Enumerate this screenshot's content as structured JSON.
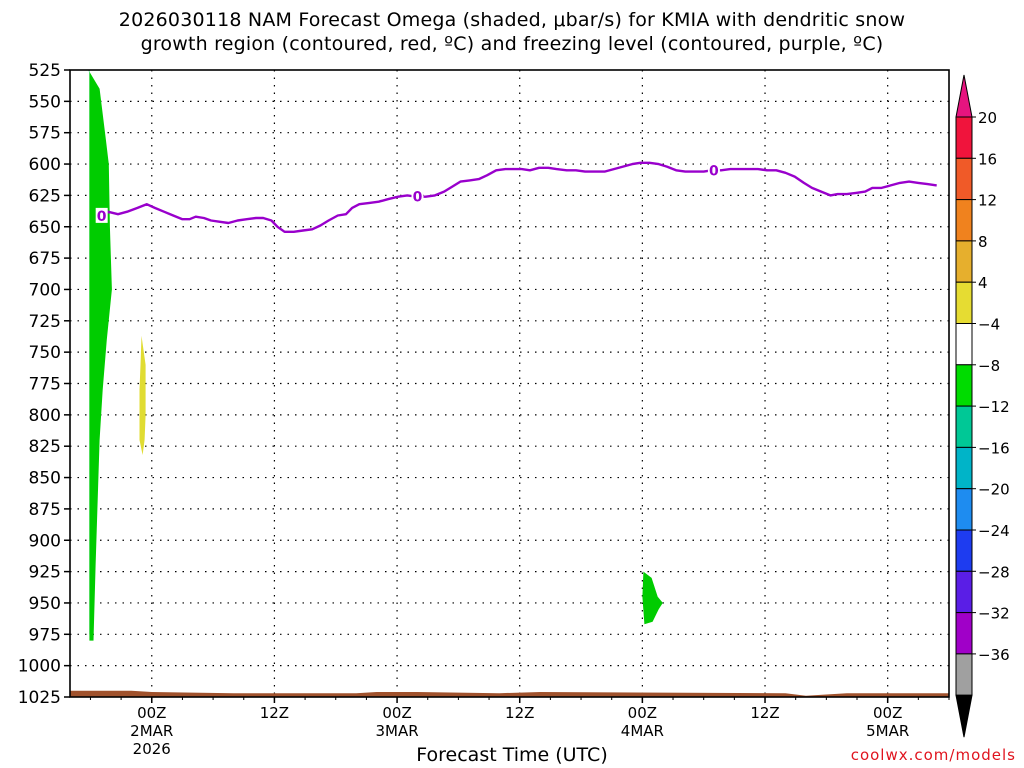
{
  "title_line1": "2026030118 NAM Forecast Omega (shaded, μbar/s) for KMIA with dendritic snow",
  "title_line2": "growth region (contoured, red, ºC) and freezing level (contoured, purple, ºC)",
  "xlabel": "Forecast Time (UTC)",
  "credit": "coolwx.com/models",
  "chart_data": {
    "type": "contour-timeheight",
    "x_unit": "forecast hours from 2026030118",
    "x_range": [
      -2,
      84
    ],
    "y_range_mb": [
      525,
      1025
    ],
    "y_ticks": [
      "525",
      "550",
      "575",
      "600",
      "625",
      "650",
      "675",
      "700",
      "725",
      "750",
      "775",
      "800",
      "825",
      "850",
      "875",
      "900",
      "925",
      "950",
      "975",
      "1000",
      "1025"
    ],
    "x_ticks": [
      {
        "hour": 6,
        "label": [
          "00Z",
          "2MAR",
          "2026"
        ]
      },
      {
        "hour": 18,
        "label": [
          "12Z"
        ]
      },
      {
        "hour": 30,
        "label": [
          "00Z",
          "3MAR"
        ]
      },
      {
        "hour": 42,
        "label": [
          "12Z"
        ]
      },
      {
        "hour": 54,
        "label": [
          "00Z",
          "4MAR"
        ]
      },
      {
        "hour": 66,
        "label": [
          "12Z"
        ]
      },
      {
        "hour": 78,
        "label": [
          "00Z",
          "5MAR"
        ]
      }
    ],
    "freezing_level": {
      "label": "0",
      "color": "#9900cc",
      "points": [
        [
          0.8,
          643
        ],
        [
          1.7,
          638
        ],
        [
          2.7,
          640
        ],
        [
          3.6,
          638
        ],
        [
          4.6,
          635
        ],
        [
          5.5,
          632
        ],
        [
          6.3,
          635
        ],
        [
          7.2,
          638
        ],
        [
          8.1,
          641
        ],
        [
          9.0,
          644
        ],
        [
          9.7,
          644
        ],
        [
          10.3,
          642
        ],
        [
          11.1,
          643
        ],
        [
          11.8,
          645
        ],
        [
          12.6,
          646
        ],
        [
          13.5,
          647
        ],
        [
          14.4,
          645
        ],
        [
          15.3,
          644
        ],
        [
          16.2,
          643
        ],
        [
          16.9,
          643
        ],
        [
          17.7,
          645
        ],
        [
          18.3,
          650
        ],
        [
          19.0,
          654
        ],
        [
          19.9,
          654
        ],
        [
          20.8,
          653
        ],
        [
          21.7,
          652
        ],
        [
          22.5,
          649
        ],
        [
          23.3,
          645
        ],
        [
          24.2,
          641
        ],
        [
          25.0,
          640
        ],
        [
          25.6,
          635
        ],
        [
          26.3,
          632
        ],
        [
          27.3,
          631
        ],
        [
          28.2,
          630
        ],
        [
          29.1,
          628
        ],
        [
          30.1,
          626
        ],
        [
          31.0,
          625
        ],
        [
          31.9,
          626
        ],
        [
          32.8,
          626
        ],
        [
          33.7,
          625
        ],
        [
          34.6,
          622
        ],
        [
          35.4,
          618
        ],
        [
          36.2,
          614
        ],
        [
          37.1,
          613
        ],
        [
          38.0,
          612
        ],
        [
          38.8,
          609
        ],
        [
          39.7,
          605
        ],
        [
          40.6,
          604
        ],
        [
          41.5,
          604
        ],
        [
          42.2,
          604
        ],
        [
          43.0,
          605
        ],
        [
          43.9,
          603
        ],
        [
          44.8,
          603
        ],
        [
          45.6,
          604
        ],
        [
          46.6,
          605
        ],
        [
          47.5,
          605
        ],
        [
          48.4,
          606
        ],
        [
          49.3,
          606
        ],
        [
          50.3,
          606
        ],
        [
          51.2,
          604
        ],
        [
          52.1,
          602
        ],
        [
          53.0,
          600
        ],
        [
          53.8,
          599
        ],
        [
          54.7,
          599
        ],
        [
          55.6,
          600
        ],
        [
          56.4,
          602
        ],
        [
          57.3,
          605
        ],
        [
          58.2,
          606
        ],
        [
          59.2,
          606
        ],
        [
          60.0,
          606
        ],
        [
          60.8,
          605
        ],
        [
          61.7,
          605
        ],
        [
          62.6,
          604
        ],
        [
          63.5,
          604
        ],
        [
          64.4,
          604
        ],
        [
          65.3,
          604
        ],
        [
          66.2,
          605
        ],
        [
          67.1,
          605
        ],
        [
          68.0,
          607
        ],
        [
          68.9,
          610
        ],
        [
          69.8,
          615
        ],
        [
          70.6,
          619
        ],
        [
          71.5,
          622
        ],
        [
          72.4,
          625
        ],
        [
          73.1,
          624
        ],
        [
          74.0,
          624
        ],
        [
          74.9,
          623
        ],
        [
          75.8,
          622
        ],
        [
          76.5,
          619
        ],
        [
          77.4,
          619
        ],
        [
          78.3,
          617
        ],
        [
          79.2,
          615
        ],
        [
          80.1,
          614
        ],
        [
          81.0,
          615
        ],
        [
          81.9,
          616
        ],
        [
          82.8,
          617
        ]
      ],
      "label_hours": [
        1.1,
        32.0,
        61.0
      ]
    },
    "omega_shaded": [
      {
        "color": "#00cc88",
        "bin": "-12 to -8",
        "outline_mb": [
          [
            -0.2,
            525
          ],
          [
            0.4,
            540
          ],
          [
            0.8,
            580
          ],
          [
            1.0,
            600
          ],
          [
            1.2,
            640
          ],
          [
            1.4,
            680
          ],
          [
            1.3,
            720
          ],
          [
            1.1,
            760
          ],
          [
            0.9,
            800
          ],
          [
            0.7,
            850
          ],
          [
            0.5,
            900
          ],
          [
            0.3,
            940
          ],
          [
            0.1,
            975
          ],
          [
            -0.1,
            975
          ],
          [
            -0.1,
            525
          ]
        ]
      },
      {
        "color": "#00cc00",
        "bin": "-8 to -4",
        "outline_mb": [
          [
            -0.2,
            525
          ],
          [
            0.9,
            540
          ],
          [
            1.5,
            580
          ],
          [
            1.8,
            600
          ],
          [
            1.9,
            650
          ],
          [
            2.1,
            700
          ],
          [
            1.6,
            740
          ],
          [
            1.2,
            780
          ],
          [
            0.9,
            820
          ],
          [
            0.7,
            870
          ],
          [
            0.5,
            920
          ],
          [
            0.3,
            980
          ],
          [
            -0.1,
            980
          ],
          [
            -0.1,
            525
          ]
        ]
      },
      {
        "color": "#00cc00",
        "bin": "-8 to -4",
        "outline_mb": [
          [
            54.1,
            925
          ],
          [
            54.9,
            930
          ],
          [
            55.5,
            945
          ],
          [
            56.0,
            950
          ],
          [
            55.6,
            955
          ],
          [
            55.0,
            965
          ],
          [
            54.2,
            967
          ],
          [
            54.0,
            945
          ]
        ]
      },
      {
        "color": "#e0dc32",
        "bin": "4 to 8",
        "outline_mb": [
          [
            5.0,
            737
          ],
          [
            5.4,
            760
          ],
          [
            5.4,
            800
          ],
          [
            5.3,
            820
          ],
          [
            5.1,
            832
          ],
          [
            4.8,
            820
          ],
          [
            4.8,
            780
          ],
          [
            4.9,
            760
          ]
        ]
      }
    ],
    "terrain": {
      "color": "#a0522d",
      "surface_mb": [
        [
          -2,
          1020
        ],
        [
          4,
          1020
        ],
        [
          6,
          1021
        ],
        [
          14,
          1022
        ],
        [
          26,
          1022
        ],
        [
          28,
          1021
        ],
        [
          32,
          1021
        ],
        [
          40,
          1022
        ],
        [
          44,
          1021
        ],
        [
          68,
          1022
        ],
        [
          70,
          1024
        ],
        [
          72,
          1023
        ],
        [
          74,
          1022
        ],
        [
          84,
          1022
        ]
      ]
    },
    "colorbar": {
      "labels": [
        "20",
        "16",
        "12",
        "8",
        "4",
        "−4",
        "−8",
        "−12",
        "−16",
        "−20",
        "−24",
        "−28",
        "−32",
        "−36"
      ],
      "colors": [
        "#f0143c",
        "#f05a28",
        "#f0821e",
        "#e6af2d",
        "#e6dc32",
        "#ffffff",
        "#00dc00",
        "#00c896",
        "#00b4c8",
        "#1e8cf0",
        "#1e3cf0",
        "#5a1ee6",
        "#a000c8",
        "#a0a0a0"
      ],
      "top_color": "#e6147f",
      "bottom_color": "#000000"
    }
  }
}
